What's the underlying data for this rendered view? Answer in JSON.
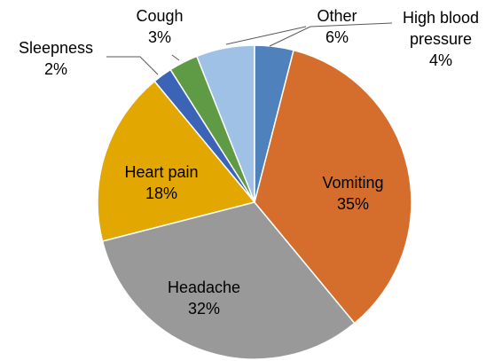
{
  "chart_data": {
    "type": "pie",
    "categories": [
      "High blood pressure",
      "Vomiting",
      "Headache",
      "Heart pain",
      "Sleepness",
      "Cough",
      "Other"
    ],
    "values": [
      4,
      35,
      32,
      18,
      2,
      3,
      6
    ],
    "value_labels": [
      "4%",
      "35%",
      "32%",
      "18%",
      "2%",
      "3%",
      "6%"
    ],
    "colors": [
      "#4f81bd",
      "#d56e2c",
      "#999999",
      "#e2a700",
      "#3b63b6",
      "#5e9b44",
      "#9fc1e6"
    ]
  }
}
